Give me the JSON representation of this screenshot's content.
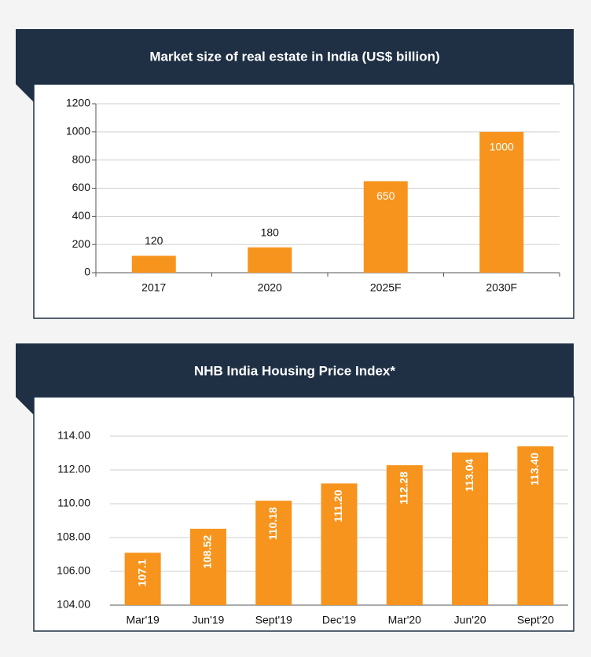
{
  "chart_data": [
    {
      "type": "bar",
      "title": "Market size of real estate in India (US$ billion)",
      "categories": [
        "2017",
        "2020",
        "2025F",
        "2030F"
      ],
      "values": [
        120,
        180,
        650,
        1000
      ],
      "color": "#f7941d",
      "ylim": [
        0,
        1200
      ],
      "yticks": [
        0,
        200,
        400,
        600,
        800,
        1000,
        1200
      ],
      "grid": true
    },
    {
      "type": "bar",
      "title": "NHB India Housing Price Index*",
      "categories": [
        "Mar'19",
        "Jun'19",
        "Sept'19",
        "Dec'19",
        "Mar'20",
        "Jun'20",
        "Sept'20"
      ],
      "values": [
        107.1,
        108.52,
        110.18,
        111.2,
        112.28,
        113.04,
        113.4
      ],
      "value_labels": [
        "107.1",
        "108.52",
        "110.18",
        "111.20",
        "112.28",
        "113.04",
        "113.40"
      ],
      "color": "#f7941d",
      "ylim": [
        104,
        114
      ],
      "yticks": [
        {
          "value": 104,
          "label": "104.00"
        },
        {
          "value": 106,
          "label": "106.00"
        },
        {
          "value": 108,
          "label": "108.00"
        },
        {
          "value": 110,
          "label": "110.00"
        },
        {
          "value": 112,
          "label": "112.00"
        },
        {
          "value": 114,
          "label": "114.00"
        }
      ],
      "grid": true
    }
  ]
}
